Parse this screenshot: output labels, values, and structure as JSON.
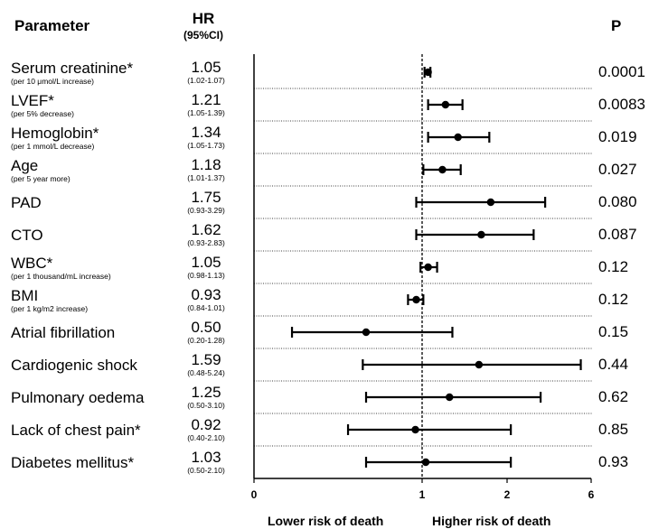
{
  "headers": {
    "parameter": "Parameter",
    "hr": "HR",
    "hr_ci": "(95%CI)",
    "p": "P"
  },
  "x_axis": {
    "left_label": "Lower risk of death",
    "right_label": "Higher risk of death"
  },
  "chart_data": {
    "type": "forest",
    "scale": "log",
    "reference_line": 1,
    "x_ticks": [
      {
        "label": "0",
        "value": 0.125
      },
      {
        "label": "1",
        "value": 1
      },
      {
        "label": "2",
        "value": 2
      },
      {
        "label": "6",
        "value": 6
      }
    ],
    "rows": [
      {
        "name": "Serum creatinine*",
        "note": "(per 10 μmol/L increase)",
        "hr": 1.05,
        "hr_text": "1.05",
        "ci_low": 1.02,
        "ci_high": 1.07,
        "ci_text": "(1.02-1.07)",
        "p": "0.0001"
      },
      {
        "name": "LVEF*",
        "note": "(per 5% decrease)",
        "hr": 1.21,
        "hr_text": "1.21",
        "ci_low": 1.05,
        "ci_high": 1.39,
        "ci_text": "(1.05-1.39)",
        "p": "0.0083"
      },
      {
        "name": "Hemoglobin*",
        "note": "(per 1 mmol/L decrease)",
        "hr": 1.34,
        "hr_text": "1.34",
        "ci_low": 1.05,
        "ci_high": 1.73,
        "ci_text": "(1.05-1.73)",
        "p": "0.019"
      },
      {
        "name": "Age",
        "note": "(per 5 year more)",
        "hr": 1.18,
        "hr_text": "1.18",
        "ci_low": 1.01,
        "ci_high": 1.37,
        "ci_text": "(1.01-1.37)",
        "p": "0.027"
      },
      {
        "name": "PAD",
        "note": "",
        "hr": 1.75,
        "hr_text": "1.75",
        "ci_low": 0.93,
        "ci_high": 3.29,
        "ci_text": "(0.93-3.29)",
        "p": "0.080"
      },
      {
        "name": "CTO",
        "note": "",
        "hr": 1.62,
        "hr_text": "1.62",
        "ci_low": 0.93,
        "ci_high": 2.83,
        "ci_text": "(0.93-2.83)",
        "p": "0.087"
      },
      {
        "name": "WBC*",
        "note": "(per 1 thousand/mL increase)",
        "hr": 1.05,
        "hr_text": "1.05",
        "ci_low": 0.98,
        "ci_high": 1.13,
        "ci_text": "(0.98-1.13)",
        "p": "0.12"
      },
      {
        "name": "BMI",
        "note": "(per 1 kg/m2 increase)",
        "hr": 0.93,
        "hr_text": "0.93",
        "ci_low": 0.84,
        "ci_high": 1.01,
        "ci_text": "(0.84-1.01)",
        "p": "0.12"
      },
      {
        "name": "Atrial fibrillation",
        "note": "",
        "hr": 0.5,
        "hr_text": "0.50",
        "ci_low": 0.2,
        "ci_high": 1.28,
        "ci_text": "(0.20-1.28)",
        "p": "0.15"
      },
      {
        "name": "Cardiogenic shock",
        "note": "",
        "hr": 1.59,
        "hr_text": "1.59",
        "ci_low": 0.48,
        "ci_high": 5.24,
        "ci_text": "(0.48-5.24)",
        "p": "0.44"
      },
      {
        "name": "Pulmonary oedema",
        "note": "",
        "hr": 1.25,
        "hr_text": "1.25",
        "ci_low": 0.5,
        "ci_high": 3.1,
        "ci_text": "(0.50-3.10)",
        "p": "0.62"
      },
      {
        "name": "Lack of chest pain*",
        "note": "",
        "hr": 0.92,
        "hr_text": "0.92",
        "ci_low": 0.4,
        "ci_high": 2.1,
        "ci_text": "(0.40-2.10)",
        "p": "0.85"
      },
      {
        "name": "Diabetes mellitus*",
        "note": "",
        "hr": 1.03,
        "hr_text": "1.03",
        "ci_low": 0.5,
        "ci_high": 2.1,
        "ci_text": "(0.50-2.10)",
        "p": "0.93"
      }
    ]
  }
}
